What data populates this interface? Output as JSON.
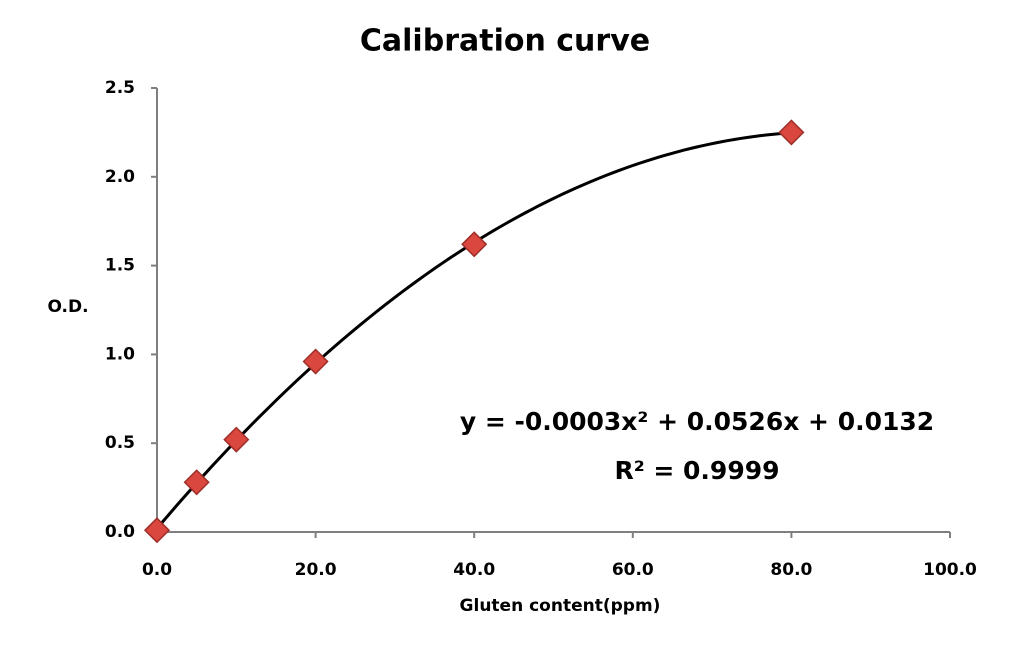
{
  "chart_data": {
    "type": "scatter",
    "title": "Calibration curve",
    "x_label": "Gluten content(ppm)",
    "y_label": "O.D.",
    "x": [
      0,
      5,
      10,
      20,
      40,
      80
    ],
    "values": [
      0.01,
      0.28,
      0.52,
      0.96,
      1.62,
      2.25
    ],
    "color": "#d9473f",
    "trendline": "polynomial",
    "annotations": [
      "y = -0.0003x² + 0.0526x + 0.0132",
      "R² = 0.9999"
    ],
    "xlim": [
      0,
      100
    ],
    "xticks": [
      {
        "value": 0,
        "label": "0.0"
      },
      {
        "value": 20,
        "label": "20.0"
      },
      {
        "value": 40,
        "label": "40.0"
      },
      {
        "value": 60,
        "label": "60.0"
      },
      {
        "value": 80,
        "label": "80.0"
      },
      {
        "value": 100,
        "label": "100.0"
      }
    ],
    "ylim": [
      0,
      2.5
    ],
    "yticks": [
      {
        "value": 0,
        "label": "0.0"
      },
      0.5,
      {
        "value": 1,
        "label": "1.0"
      },
      1.5,
      {
        "value": 2,
        "label": "2.0"
      },
      2.5
    ]
  }
}
